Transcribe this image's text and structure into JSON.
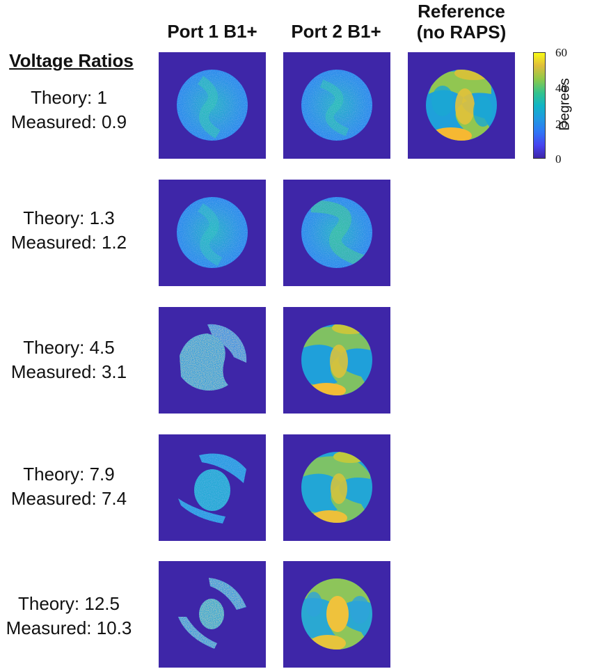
{
  "headers": {
    "port1": "Port 1 B1+",
    "port2": "Port 2 B1+",
    "reference_line1": "Reference",
    "reference_line2": "(no RAPS)"
  },
  "section_title": "Voltage Ratios",
  "rows": [
    {
      "theory": "Theory: 1",
      "measured": "Measured: 0.9"
    },
    {
      "theory": "Theory: 1.3",
      "measured": "Measured: 1.2"
    },
    {
      "theory": "Theory: 4.5",
      "measured": "Measured: 3.1"
    },
    {
      "theory": "Theory: 7.9",
      "measured": "Measured: 7.4"
    },
    {
      "theory": "Theory: 12.5",
      "measured": "Measured: 10.3"
    }
  ],
  "colorbar": {
    "label": "Degrees",
    "ticks": [
      "60",
      "40",
      "20",
      "0"
    ],
    "min": 0,
    "max": 60,
    "background_color": "#3e26a8"
  }
}
